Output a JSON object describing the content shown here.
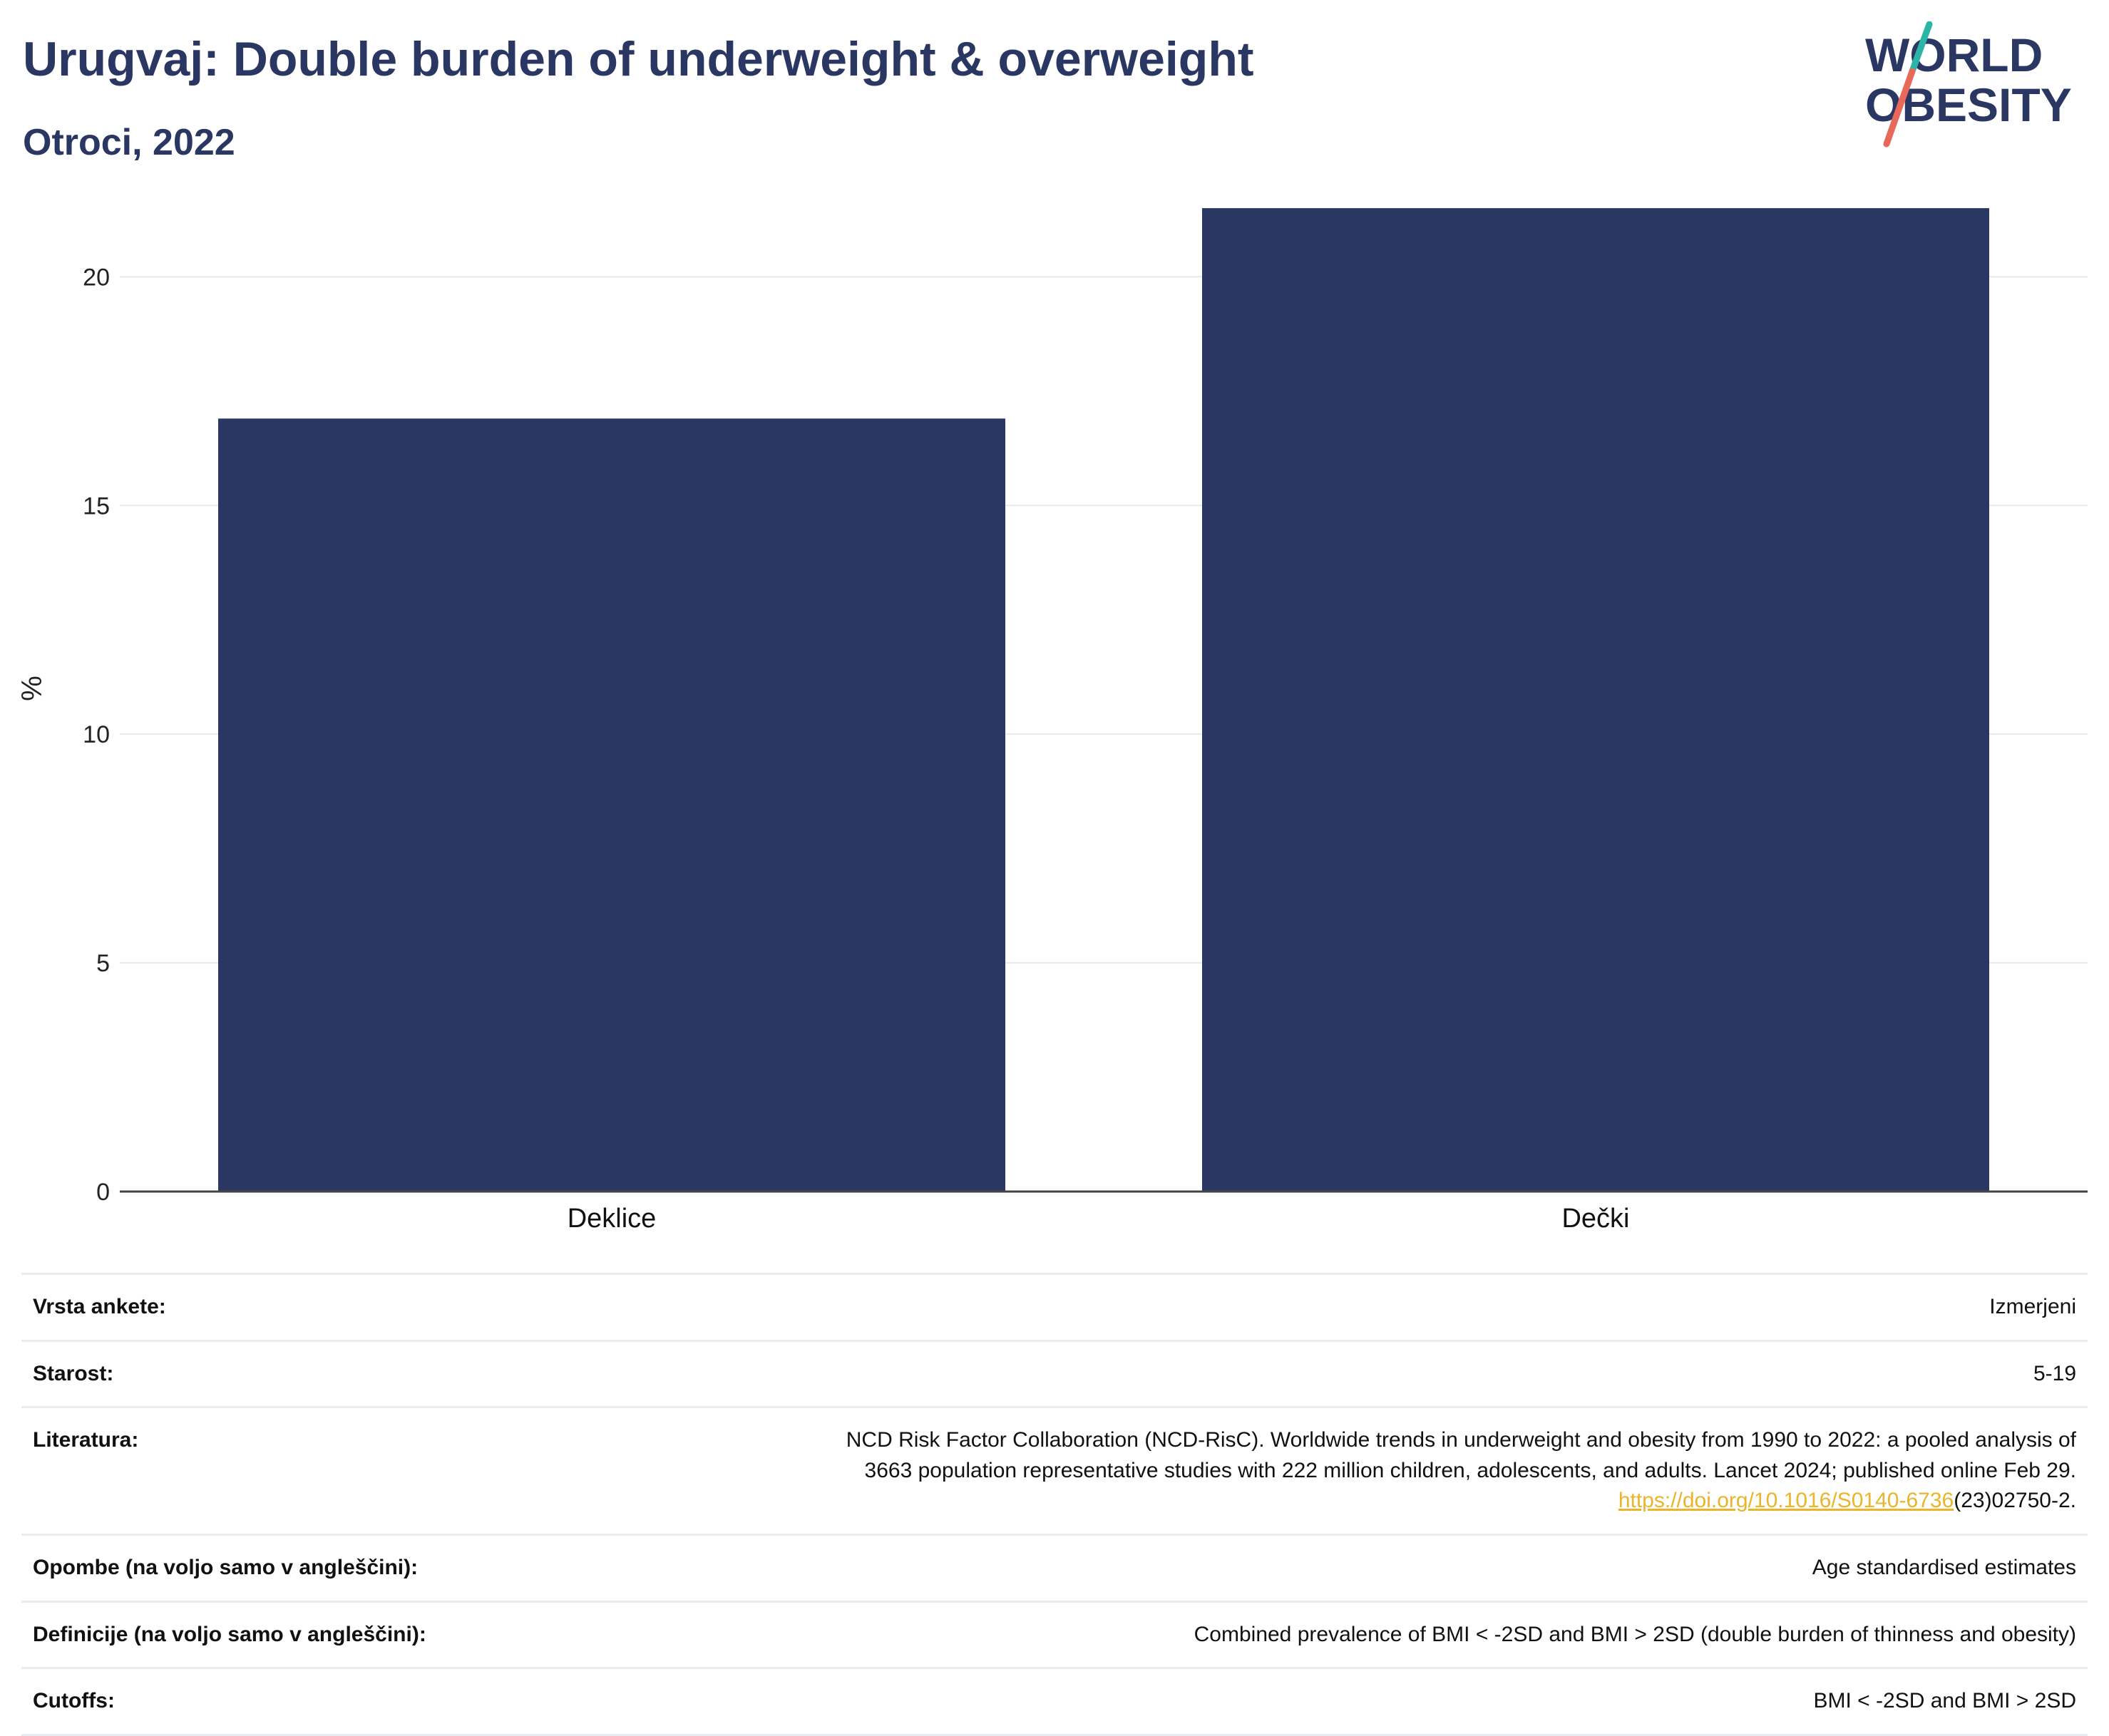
{
  "header": {
    "title": "Urugvaj: Double burden of underweight & overweight",
    "subtitle": "Otroci, 2022"
  },
  "logo": {
    "line1": "WORLD",
    "line2": "OBESITY",
    "colors": {
      "text": "#2b3763",
      "slash_top": "#2bb5a9",
      "slash_bottom": "#e8685a"
    }
  },
  "chart_data": {
    "type": "bar",
    "categories": [
      "Deklice",
      "Dečki"
    ],
    "values": [
      16.9,
      21.5
    ],
    "ylabel": "%",
    "xlabel": "",
    "ylim": [
      0,
      22
    ],
    "yticks": [
      0,
      5,
      10,
      15,
      20
    ],
    "grid": true,
    "bar_color": "#2b3763"
  },
  "info": {
    "rows": [
      {
        "key": "Vrsta ankete:",
        "value": "Izmerjeni"
      },
      {
        "key": "Starost:",
        "value": "5-19"
      },
      {
        "key": "Literatura:",
        "value_lines": [
          "NCD Risk Factor Collaboration (NCD-RisC). Worldwide trends in underweight and obesity from 1990 to 2022: a pooled analysis of",
          "3663 population representative studies with 222 million children, adolescents, and adults. Lancet 2024; published online Feb 29."
        ],
        "link_text": "https://doi.org/10.1016/S0140-6736",
        "link_suffix": "(23)02750-2."
      },
      {
        "key": "Opombe (na voljo samo v angleščini):",
        "value": "Age standardised estimates"
      },
      {
        "key": "Definicije (na voljo samo v angleščini):",
        "value": "Combined prevalence of BMI < -2SD and BMI > 2SD (double burden of thinness and obesity)"
      },
      {
        "key": "Cutoffs:",
        "value": "BMI < -2SD and BMI > 2SD"
      }
    ]
  }
}
